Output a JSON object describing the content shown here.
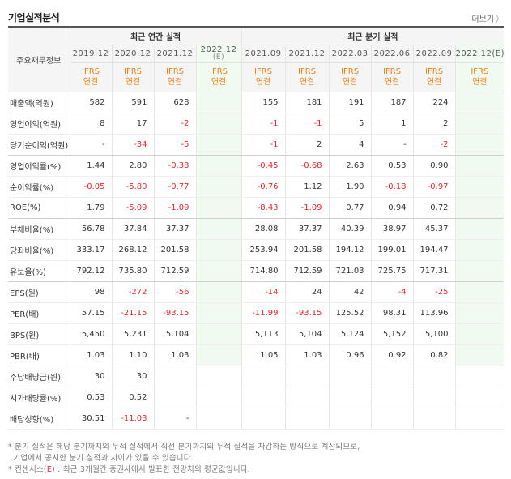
{
  "header": {
    "title": "기업실적분석",
    "more_label": "더보기",
    "more_arrow": "〉"
  },
  "table": {
    "row_header_label": "주요재무정보",
    "annual_group_label": "최근 연간 실적",
    "quarter_group_label": "최근 분기 실적",
    "annual_periods": [
      "2019.12",
      "2020.12",
      "2021.12",
      "2022.12"
    ],
    "annual_estimate_tag": "(E)",
    "quarter_periods": [
      "2021.09",
      "2021.12",
      "2022.03",
      "2022.06",
      "2022.09",
      "2022.12(E)"
    ],
    "ifrs_line1": "IFRS",
    "ifrs_line2": "연결",
    "rows": [
      {
        "label": "매출액(억원)",
        "annual": [
          "582",
          "591",
          "628",
          ""
        ],
        "quarter": [
          "155",
          "181",
          "191",
          "187",
          "224",
          ""
        ]
      },
      {
        "label": "영업이익(억원)",
        "annual": [
          "8",
          "17",
          "-2",
          ""
        ],
        "quarter": [
          "-1",
          "-1",
          "5",
          "1",
          "2",
          ""
        ]
      },
      {
        "label": "당기순이익(억원)",
        "annual": [
          "-",
          "-34",
          "-5",
          ""
        ],
        "quarter": [
          "-1",
          "2",
          "4",
          "-",
          "-2",
          ""
        ]
      },
      {
        "label": "영업이익률(%)",
        "annual": [
          "1.44",
          "2.80",
          "-0.33",
          ""
        ],
        "quarter": [
          "-0.45",
          "-0.68",
          "2.63",
          "0.53",
          "0.90",
          ""
        ]
      },
      {
        "label": "순이익률(%)",
        "annual": [
          "-0.05",
          "-5.80",
          "-0.77",
          ""
        ],
        "quarter": [
          "-0.76",
          "1.12",
          "1.90",
          "-0.18",
          "-0.97",
          ""
        ]
      },
      {
        "label": "ROE(%)",
        "annual": [
          "1.79",
          "-5.09",
          "-1.09",
          ""
        ],
        "quarter": [
          "-8.43",
          "-1.09",
          "0.77",
          "0.94",
          "0.72",
          ""
        ]
      },
      {
        "label": "부채비율(%)",
        "annual": [
          "56.78",
          "37.84",
          "37.37",
          ""
        ],
        "quarter": [
          "28.08",
          "37.37",
          "40.39",
          "38.97",
          "45.37",
          ""
        ]
      },
      {
        "label": "당좌비율(%)",
        "annual": [
          "333.17",
          "268.12",
          "201.58",
          ""
        ],
        "quarter": [
          "253.94",
          "201.58",
          "194.12",
          "199.01",
          "194.47",
          ""
        ]
      },
      {
        "label": "유보율(%)",
        "annual": [
          "792.12",
          "735.80",
          "712.59",
          ""
        ],
        "quarter": [
          "714.80",
          "712.59",
          "721.03",
          "725.75",
          "717.31",
          ""
        ]
      },
      {
        "label": "EPS(원)",
        "annual": [
          "98",
          "-272",
          "-56",
          ""
        ],
        "quarter": [
          "-14",
          "24",
          "42",
          "-4",
          "-25",
          ""
        ]
      },
      {
        "label": "PER(배)",
        "annual": [
          "57.15",
          "-21.15",
          "-93.15",
          ""
        ],
        "quarter": [
          "-11.99",
          "-93.15",
          "125.52",
          "98.31",
          "113.96",
          ""
        ]
      },
      {
        "label": "BPS(원)",
        "annual": [
          "5,450",
          "5,231",
          "5,104",
          ""
        ],
        "quarter": [
          "5,113",
          "5,104",
          "5,124",
          "5,152",
          "5,100",
          ""
        ]
      },
      {
        "label": "PBR(배)",
        "annual": [
          "1.03",
          "1.10",
          "1.03",
          ""
        ],
        "quarter": [
          "1.05",
          "1.03",
          "0.96",
          "0.92",
          "0.82",
          ""
        ]
      },
      {
        "label": "주당배당금(원)",
        "annual": [
          "30",
          "30",
          "",
          ""
        ],
        "quarter": [
          "",
          "",
          "",
          "",
          "",
          ""
        ]
      },
      {
        "label": "시가배당률(%)",
        "annual": [
          "0.53",
          "0.52",
          "",
          ""
        ],
        "quarter": [
          "",
          "",
          "",
          "",
          "",
          ""
        ]
      },
      {
        "label": "배당성향(%)",
        "annual": [
          "30.51",
          "-11.03",
          "-",
          ""
        ],
        "quarter": [
          "",
          "",
          "",
          "",
          "",
          ""
        ]
      }
    ]
  },
  "notes": {
    "line1": "* 분기 실적은 해당 분기까지의 누적 실적에서 직전 분기까지의 누적 실적을 차감하는 방식으로 계산되므로,",
    "line2": "  기업에서 공시한 분기 실적과 차이가 있을 수 있습니다.",
    "line3_prefix": "* 컨센서스(",
    "line3_mark": "E",
    "line3_suffix": ") : 최근 3개월간 증권사에서 발표한 전망치의 평균값입니다."
  }
}
